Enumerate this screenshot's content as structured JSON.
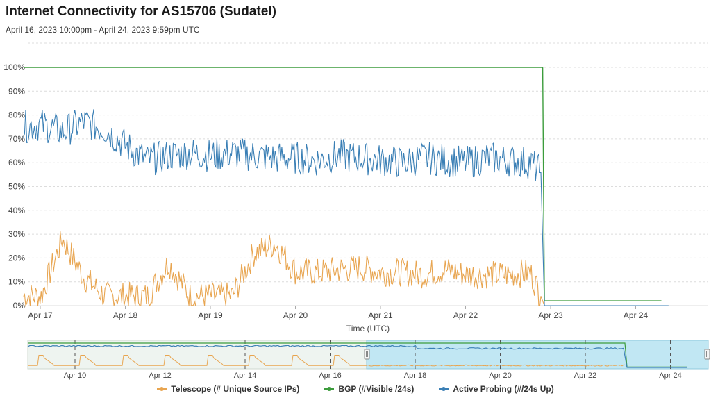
{
  "header": {
    "title": "Internet Connectivity for AS15706 (Sudatel)",
    "subtitle": "April 16, 2023 10:00pm - April 24, 2023 9:59pm UTC"
  },
  "colors": {
    "telescope": "#e8a550",
    "bgp": "#3c9c3c",
    "active_probing": "#3a7fb5",
    "grid": "#dcdcdc",
    "navigator_fill": "#b8e4f3"
  },
  "chart_data": {
    "type": "line",
    "title": "Internet Connectivity for AS15706 (Sudatel)",
    "xlabel": "Time (UTC)",
    "ylabel": "",
    "ylim": [
      0,
      100
    ],
    "y_ticks": [
      "0%",
      "10%",
      "20%",
      "30%",
      "40%",
      "50%",
      "60%",
      "70%",
      "80%",
      "90%",
      "100%"
    ],
    "x_ticks": [
      "Apr 17",
      "Apr 18",
      "Apr 19",
      "Apr 20",
      "Apr 21",
      "Apr 22",
      "Apr 23",
      "Apr 24"
    ],
    "grid": true,
    "legend_position": "bottom",
    "series": [
      {
        "name": "Telescope (# Unique Source IPs)",
        "x": [
          "Apr 16 22:00",
          "Apr 17 03:00",
          "Apr 17 09:00",
          "Apr 17 15:00",
          "Apr 17 21:00",
          "Apr 18 03:00",
          "Apr 18 09:00",
          "Apr 18 15:00",
          "Apr 18 21:00",
          "Apr 19 03:00",
          "Apr 19 09:00",
          "Apr 19 15:00",
          "Apr 19 21:00",
          "Apr 20 03:00",
          "Apr 20 09:00",
          "Apr 20 15:00",
          "Apr 20 21:00",
          "Apr 21 03:00",
          "Apr 21 09:00",
          "Apr 21 15:00",
          "Apr 21 21:00",
          "Apr 22 03:00",
          "Apr 22 09:00",
          "Apr 22 15:00",
          "Apr 22 21:00",
          "Apr 23 00:00",
          "Apr 23 01:00",
          "Apr 24 12:00"
        ],
        "values": [
          4,
          4,
          28,
          12,
          4,
          4,
          4,
          18,
          4,
          4,
          4,
          22,
          26,
          14,
          14,
          15,
          16,
          14,
          14,
          13,
          15,
          13,
          13,
          13,
          14,
          4,
          0,
          0
        ]
      },
      {
        "name": "BGP (#Visible /24s)",
        "x": [
          "Apr 16 22:00",
          "Apr 23 00:30",
          "Apr 23 01:00",
          "Apr 24 10:00"
        ],
        "values": [
          100,
          100,
          2,
          2
        ]
      },
      {
        "name": "Active Probing (#/24s Up)",
        "x": [
          "Apr 16 22:00",
          "Apr 17 03:00",
          "Apr 17 09:00",
          "Apr 17 15:00",
          "Apr 17 21:00",
          "Apr 18 03:00",
          "Apr 18 09:00",
          "Apr 18 15:00",
          "Apr 18 21:00",
          "Apr 19 03:00",
          "Apr 19 09:00",
          "Apr 19 15:00",
          "Apr 19 21:00",
          "Apr 20 03:00",
          "Apr 20 09:00",
          "Apr 20 15:00",
          "Apr 20 21:00",
          "Apr 21 03:00",
          "Apr 21 09:00",
          "Apr 21 15:00",
          "Apr 21 21:00",
          "Apr 22 03:00",
          "Apr 22 09:00",
          "Apr 22 15:00",
          "Apr 22 21:00",
          "Apr 23 00:00",
          "Apr 23 01:00",
          "Apr 24 12:00"
        ],
        "values": [
          75,
          76,
          73,
          77,
          74,
          67,
          61,
          63,
          64,
          63,
          64,
          63,
          62,
          62,
          61,
          63,
          62,
          61,
          60,
          62,
          61,
          60,
          62,
          61,
          60,
          56,
          0,
          0
        ]
      }
    ]
  },
  "navigator": {
    "x_ticks": [
      "Apr 10",
      "Apr 12",
      "Apr 14",
      "Apr 16",
      "Apr 18",
      "Apr 20",
      "Apr 22",
      "Apr 24"
    ],
    "selection": [
      "Apr 16 22:00",
      "Apr 24 21:59"
    ]
  }
}
